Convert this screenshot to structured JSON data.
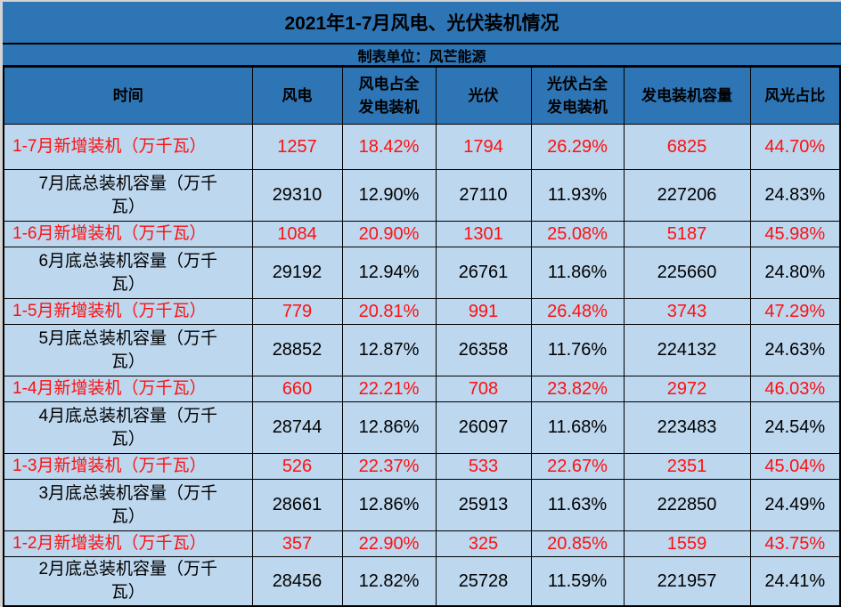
{
  "title": "2021年1-7月风电、光伏装机情况",
  "subtitle": "制表单位：风芒能源",
  "colors": {
    "header_blue": "#2e75b6",
    "row_light_blue": "#bdd7ee",
    "new_install_red": "#fe1010",
    "total_text_black": "#000000",
    "grid_border": "#000000"
  },
  "chart_data": {
    "type": "table",
    "title": "2021年1-7月风电、光伏装机情况",
    "subtitle": "制表单位：风芒能源",
    "columns": [
      "时间",
      "风电",
      "风电占全\n发电装机",
      "光伏",
      "光伏占全\n发电装机",
      "发电装机容量",
      "风光占比"
    ],
    "rows": [
      {
        "type": "new",
        "cells": [
          "1-7月新增装机（万千瓦）",
          "1257",
          "18.42%",
          "1794",
          "26.29%",
          "6825",
          "44.70%"
        ]
      },
      {
        "type": "total",
        "cells": [
          "7月底总装机容量（万千\n瓦）",
          "29310",
          "12.90%",
          "27110",
          "11.93%",
          "227206",
          "24.83%"
        ]
      },
      {
        "type": "new",
        "cells": [
          "1-6月新增装机（万千瓦）",
          "1084",
          "20.90%",
          "1301",
          "25.08%",
          "5187",
          "45.98%"
        ]
      },
      {
        "type": "total",
        "cells": [
          "6月底总装机容量（万千\n瓦）",
          "29192",
          "12.94%",
          "26761",
          "11.86%",
          "225660",
          "24.80%"
        ]
      },
      {
        "type": "new",
        "cells": [
          "1-5月新增装机（万千瓦）",
          "779",
          "20.81%",
          "991",
          "26.48%",
          "3743",
          "47.29%"
        ]
      },
      {
        "type": "total",
        "cells": [
          "5月底总装机容量（万千\n瓦）",
          "28852",
          "12.87%",
          "26358",
          "11.76%",
          "224132",
          "24.63%"
        ]
      },
      {
        "type": "new",
        "cells": [
          "1-4月新增装机（万千瓦）",
          "660",
          "22.21%",
          "708",
          "23.82%",
          "2972",
          "46.03%"
        ]
      },
      {
        "type": "total",
        "cells": [
          "4月底总装机容量（万千\n瓦）",
          "28744",
          "12.86%",
          "26097",
          "11.68%",
          "223483",
          "24.54%"
        ]
      },
      {
        "type": "new",
        "cells": [
          "1-3月新增装机（万千瓦）",
          "526",
          "22.37%",
          "533",
          "22.67%",
          "2351",
          "45.04%"
        ]
      },
      {
        "type": "total",
        "cells": [
          "3月底总装机容量（万千\n瓦）",
          "28661",
          "12.86%",
          "25913",
          "11.63%",
          "222850",
          "24.49%"
        ]
      },
      {
        "type": "new",
        "cells": [
          "1-2月新增装机（万千瓦）",
          "357",
          "22.90%",
          "325",
          "20.85%",
          "1559",
          "43.75%"
        ]
      },
      {
        "type": "total",
        "cells": [
          "2月底总装机容量（万千\n瓦）",
          "28456",
          "12.82%",
          "25728",
          "11.59%",
          "221957",
          "24.41%"
        ]
      }
    ]
  }
}
